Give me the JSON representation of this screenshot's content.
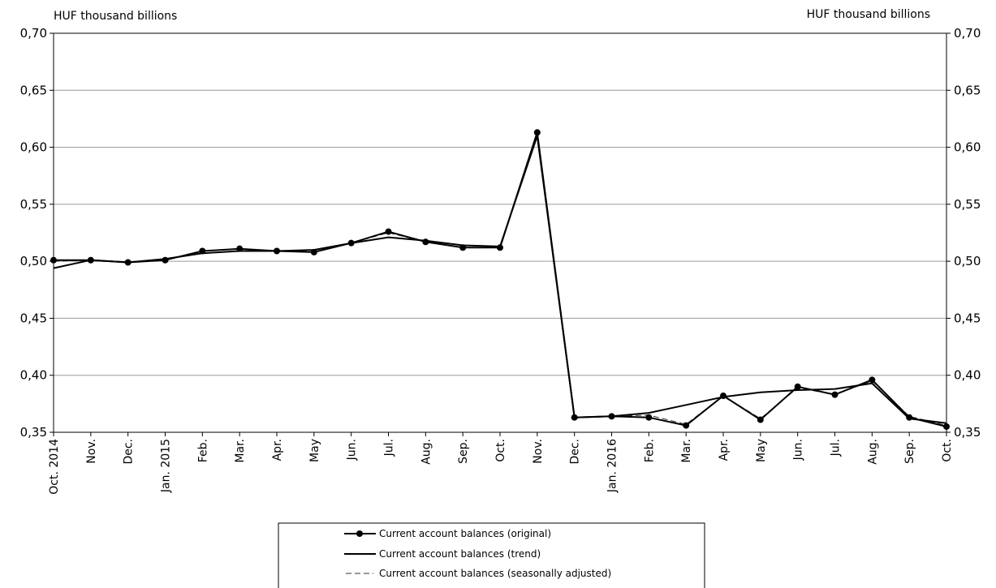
{
  "chart_data": {
    "type": "line",
    "title": "",
    "y_unit_left": "HUF thousand billions",
    "y_unit_right": "HUF thousand billions",
    "ylim": [
      0.35,
      0.7
    ],
    "yticks": [
      "0,70",
      "0,65",
      "0,60",
      "0,55",
      "0,50",
      "0,45",
      "0,40",
      "0,35"
    ],
    "ytick_values": [
      0.7,
      0.65,
      0.6,
      0.55,
      0.5,
      0.45,
      0.4,
      0.35
    ],
    "grid": true,
    "legend_position": "bottom-center",
    "categories": [
      "Oct. 2014",
      "Nov.",
      "Dec.",
      "Jan. 2015",
      "Feb.",
      "Mar.",
      "Apr.",
      "May",
      "Jun.",
      "Jul.",
      "Aug.",
      "Sep.",
      "Oct.",
      "Nov.",
      "Dec.",
      "Jan. 2016",
      "Feb.",
      "Mar.",
      "Apr.",
      "May",
      "Jun.",
      "Jul.",
      "Aug.",
      "Sep.",
      "Oct."
    ],
    "series": [
      {
        "name": "Current account balances (original)",
        "style": "line-markers",
        "values": [
          0.501,
          0.501,
          0.499,
          0.501,
          0.509,
          0.511,
          0.509,
          0.508,
          0.516,
          0.526,
          0.517,
          0.512,
          0.512,
          0.613,
          0.363,
          0.364,
          0.363,
          0.356,
          0.382,
          0.361,
          0.39,
          0.383,
          0.396,
          0.363,
          0.355
        ]
      },
      {
        "name": "Current account balances (trend)",
        "style": "solid",
        "values": [
          0.494,
          0.501,
          0.499,
          0.502,
          0.507,
          0.509,
          0.509,
          0.51,
          0.516,
          0.521,
          0.518,
          0.514,
          0.513,
          0.61,
          0.363,
          0.364,
          0.367,
          0.374,
          0.381,
          0.385,
          0.387,
          0.388,
          0.393,
          0.362,
          0.358
        ]
      },
      {
        "name": "Current account balances (seasonally adjusted)",
        "style": "dashed",
        "values": [
          0.5,
          0.501,
          0.499,
          0.501,
          0.509,
          0.511,
          0.509,
          0.508,
          0.516,
          0.525,
          0.517,
          0.512,
          0.512,
          0.612,
          0.363,
          0.364,
          0.365,
          0.357,
          0.382,
          0.362,
          0.389,
          0.383,
          0.395,
          0.364,
          0.356
        ]
      }
    ]
  }
}
